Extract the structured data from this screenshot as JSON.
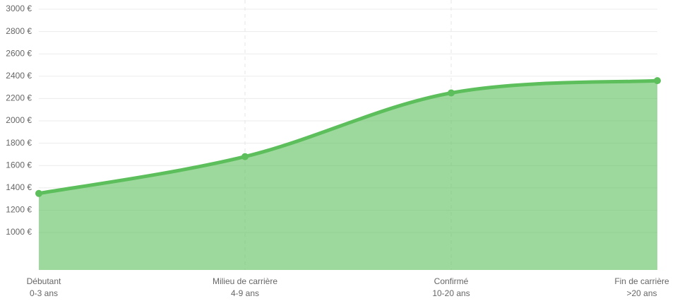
{
  "chart_data": {
    "type": "area",
    "categories": [
      [
        "Débutant",
        "0-3 ans"
      ],
      [
        "Milieu de carrière",
        "4-9 ans"
      ],
      [
        "Confirmé",
        "10-20 ans"
      ],
      [
        "Fin de carrière",
        ">20 ans"
      ]
    ],
    "series": [
      {
        "color": "#5cbf5c",
        "values": [
          1350,
          1680,
          2250,
          2360
        ]
      }
    ],
    "ylim": [
      665,
      3000
    ],
    "yticks": [
      {
        "value": 1000,
        "label": "1000 €"
      },
      {
        "value": 1200,
        "label": "1200 €"
      },
      {
        "value": 1400,
        "label": "1400 €"
      },
      {
        "value": 1600,
        "label": "1600 €"
      },
      {
        "value": 1800,
        "label": "1800 €"
      },
      {
        "value": 2000,
        "label": "2000 €"
      },
      {
        "value": 2200,
        "label": "2200 €"
      },
      {
        "value": 2400,
        "label": "2400 €"
      },
      {
        "value": 2600,
        "label": "2600 €"
      },
      {
        "value": 2800,
        "label": "2800 €"
      },
      {
        "value": 3000,
        "label": "3000 €"
      }
    ],
    "grid": true
  }
}
